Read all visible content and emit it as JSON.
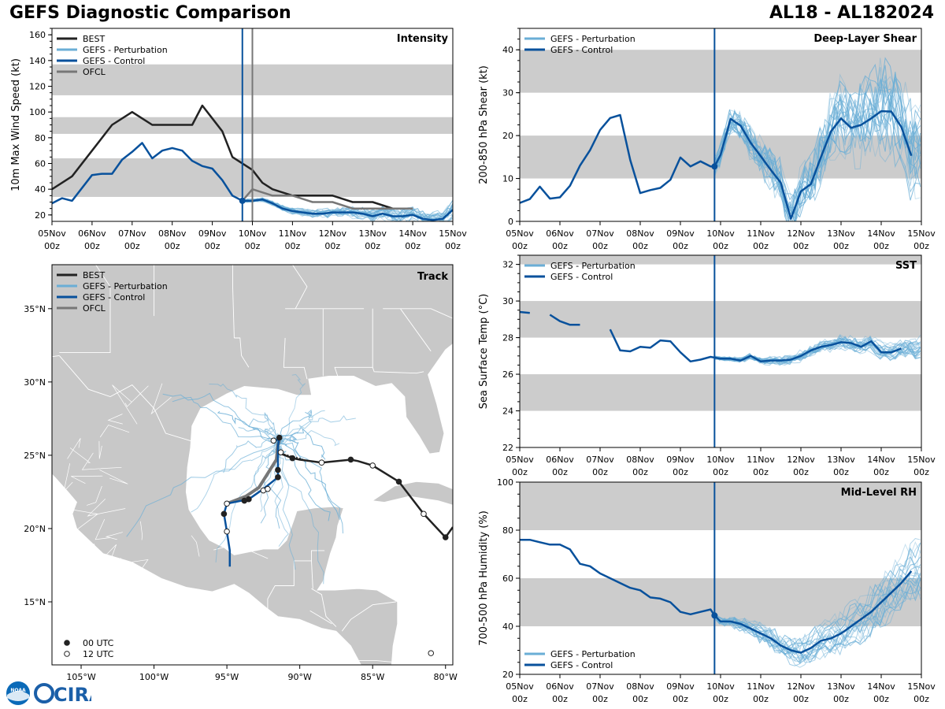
{
  "header": {
    "title_left": "GEFS Diagnostic Comparison",
    "title_right": "AL18 - AL182024"
  },
  "logos": {
    "noaa": "NOAA",
    "cira": "CIRA"
  },
  "colors": {
    "best": "#222222",
    "perturbation": "#6aaed6",
    "control": "#08519c",
    "ofcl": "#777777",
    "band": "#cccccc",
    "land": "#c8c8c8"
  },
  "chart_data": [
    {
      "id": "intensity",
      "type": "line",
      "title": "Intensity",
      "ylabel": "10m Max Wind Speed (kt)",
      "ylim": [
        15,
        165
      ],
      "yticks": [
        20,
        40,
        60,
        80,
        100,
        120,
        140,
        160
      ],
      "xlim": [
        0,
        10
      ],
      "xticks": [
        "05Nov\n00z",
        "06Nov\n00z",
        "07Nov\n00z",
        "08Nov\n00z",
        "09Nov\n00z",
        "10Nov\n00z",
        "11Nov\n00z",
        "12Nov\n00z",
        "13Nov\n00z",
        "14Nov\n00z",
        "15Nov\n00z"
      ],
      "bands": [
        [
          34,
          64
        ],
        [
          83,
          96
        ],
        [
          113,
          137
        ]
      ],
      "vlines": [
        {
          "x": 4.75,
          "series": "GEFS - Control"
        },
        {
          "x": 5.0,
          "series": "OFCL"
        }
      ],
      "legend": [
        "BEST",
        "GEFS - Perturbation",
        "GEFS - Control",
        "OFCL"
      ],
      "series": [
        {
          "name": "BEST",
          "x": [
            0,
            0.5,
            1,
            1.5,
            2,
            2.25,
            2.5,
            3,
            3.5,
            3.75,
            4,
            4.25,
            4.5,
            5,
            5.25,
            5.5,
            6,
            6.5,
            7,
            7.5,
            8,
            8.5,
            9
          ],
          "values": [
            40,
            50,
            70,
            90,
            100,
            95,
            90,
            90,
            90,
            105,
            95,
            85,
            65,
            55,
            45,
            40,
            35,
            35,
            35,
            30,
            30,
            25,
            25
          ]
        },
        {
          "name": "GEFS - Control",
          "x": [
            0,
            0.25,
            0.5,
            1,
            1.25,
            1.5,
            1.75,
            2,
            2.25,
            2.5,
            2.75,
            3,
            3.25,
            3.5,
            3.75,
            4,
            4.25,
            4.5,
            4.75,
            5,
            5.25,
            5.5,
            5.75,
            6,
            6.25,
            6.5,
            6.75,
            7,
            7.25,
            7.5,
            7.75,
            8,
            8.25,
            8.5,
            8.75,
            9,
            9.25,
            9.5,
            9.75,
            10
          ],
          "values": [
            29,
            33,
            31,
            51,
            52,
            52,
            63,
            69,
            76,
            64,
            70,
            72,
            70,
            62,
            58,
            56,
            47,
            35,
            31,
            31,
            32,
            29,
            25,
            23,
            22,
            21,
            21,
            22,
            22,
            22,
            21,
            19,
            21,
            19,
            19,
            20,
            17,
            16,
            17,
            24
          ]
        },
        {
          "name": "OFCL",
          "x": [
            4.75,
            5,
            5.5,
            6,
            6.5,
            7,
            7.5,
            8,
            8.5,
            9
          ],
          "values": [
            31,
            40,
            35,
            35,
            30,
            30,
            25,
            25,
            25,
            25
          ]
        }
      ]
    },
    {
      "id": "shear",
      "type": "line",
      "title": "Deep-Layer Shear",
      "ylabel": "200-850 hPa Shear (kt)",
      "ylim": [
        0,
        45
      ],
      "yticks": [
        0,
        10,
        20,
        30,
        40
      ],
      "xlim": [
        0,
        10
      ],
      "bands": [
        [
          10,
          20
        ],
        [
          30,
          40
        ]
      ],
      "vlines": [
        {
          "x": 4.85,
          "series": "GEFS - Control"
        }
      ],
      "legend": [
        "GEFS - Perturbation",
        "GEFS - Control"
      ],
      "series": [
        {
          "name": "GEFS - Control",
          "x": [
            0,
            0.25,
            0.5,
            0.75,
            1,
            1.25,
            1.5,
            1.75,
            2,
            2.25,
            2.5,
            2.75,
            3,
            3.25,
            3.5,
            3.75,
            4,
            4.25,
            4.5,
            4.75,
            4.85,
            5,
            5.25,
            5.5,
            5.75,
            6,
            6.25,
            6.5,
            6.75,
            7,
            7.25,
            7.5,
            7.75,
            8,
            8.25,
            8.5,
            8.75,
            9,
            9.25,
            9.5,
            9.75
          ],
          "values": [
            4.3,
            5.2,
            8.1,
            5.3,
            5.6,
            8.3,
            13,
            16.6,
            21.3,
            24.1,
            24.8,
            14.3,
            6.6,
            7.3,
            7.8,
            9.7,
            14.9,
            12.8,
            14,
            12.8,
            12.8,
            15.5,
            23.9,
            22.3,
            18.3,
            15.2,
            12,
            9,
            0.6,
            7,
            8.7,
            15,
            21,
            24,
            21.8,
            22.5,
            24,
            25.7,
            25.6,
            22,
            15.3
          ]
        }
      ]
    },
    {
      "id": "sst",
      "type": "line",
      "title": "SST",
      "ylabel": "Sea Surface Temp (°C)",
      "ylim": [
        22,
        32.5
      ],
      "yticks": [
        22,
        24,
        26,
        28,
        30,
        32
      ],
      "xlim": [
        0,
        10
      ],
      "bands": [
        [
          24,
          26
        ],
        [
          28,
          30
        ],
        [
          32,
          34
        ]
      ],
      "vlines": [
        {
          "x": 4.85,
          "series": "GEFS - Control"
        }
      ],
      "legend": [
        "GEFS - Perturbation",
        "GEFS - Control"
      ],
      "series": [
        {
          "name": "GEFS - Control (a)",
          "x": [
            0,
            0.25
          ],
          "values": [
            29.4,
            29.35
          ]
        },
        {
          "name": "GEFS - Control (b)",
          "x": [
            0.75,
            1,
            1.25,
            1.5
          ],
          "values": [
            29.25,
            28.9,
            28.7,
            28.7
          ]
        },
        {
          "name": "GEFS - Control (c)",
          "x": [
            2.25,
            2.5,
            2.75,
            3,
            3.25,
            3.5,
            3.75,
            4,
            4.25,
            4.5,
            4.75,
            5,
            5.25,
            5.5,
            5.75,
            6,
            6.25,
            6.5,
            6.75,
            7,
            7.25,
            7.5,
            7.75,
            8,
            8.25,
            8.5,
            8.75,
            9,
            9.25,
            9.5
          ],
          "values": [
            28.45,
            27.3,
            27.25,
            27.5,
            27.45,
            27.85,
            27.8,
            27.2,
            26.7,
            26.8,
            26.95,
            26.85,
            26.85,
            26.75,
            27,
            26.7,
            26.75,
            26.75,
            26.8,
            27,
            27.3,
            27.5,
            27.6,
            27.75,
            27.7,
            27.5,
            27.8,
            27.2,
            27.2,
            27.4
          ]
        }
      ]
    },
    {
      "id": "rh",
      "type": "line",
      "title": "Mid-Level RH",
      "ylabel": "700-500 hPa Humidity (%)",
      "ylim": [
        20,
        100
      ],
      "yticks": [
        20,
        40,
        60,
        80,
        100
      ],
      "xlim": [
        0,
        10
      ],
      "bands": [
        [
          40,
          60
        ],
        [
          80,
          100
        ]
      ],
      "vlines": [
        {
          "x": 4.85,
          "series": "GEFS - Control"
        }
      ],
      "legend": [
        "GEFS - Perturbation",
        "GEFS - Control"
      ],
      "series": [
        {
          "name": "GEFS - Control",
          "x": [
            0,
            0.25,
            0.5,
            0.75,
            1,
            1.25,
            1.5,
            1.75,
            2,
            2.25,
            2.5,
            2.75,
            3,
            3.25,
            3.5,
            3.75,
            4,
            4.25,
            4.5,
            4.75,
            4.85,
            5,
            5.25,
            5.5,
            5.75,
            6,
            6.25,
            6.5,
            6.75,
            7,
            7.25,
            7.5,
            7.75,
            8,
            8.25,
            8.5,
            8.75,
            9,
            9.25,
            9.5,
            9.75
          ],
          "values": [
            76,
            76,
            75,
            74,
            74,
            72,
            66,
            65,
            62,
            60,
            58,
            56,
            55,
            52,
            51.5,
            50,
            46,
            45,
            46,
            47,
            44.5,
            42,
            42,
            41,
            39,
            37,
            35,
            32,
            30,
            29,
            31,
            34,
            35,
            37,
            40,
            43,
            46,
            50,
            54,
            58,
            63
          ]
        }
      ]
    },
    {
      "id": "track",
      "type": "map",
      "title": "Track",
      "xlim": [
        -107,
        -79.5
      ],
      "ylim": [
        10.7,
        38
      ],
      "xtick_labels": [
        "105°W",
        "100°W",
        "95°W",
        "90°W",
        "85°W",
        "80°W"
      ],
      "ytick_labels": [
        "15°N",
        "20°N",
        "25°N",
        "30°N",
        "35°N"
      ],
      "legend": [
        "BEST",
        "GEFS - Perturbation",
        "GEFS - Control",
        "OFCL"
      ],
      "marker_legend": [
        "00 UTC",
        "12 UTC"
      ],
      "best_track": [
        [
          -79.5,
          20.1
        ],
        [
          -80.0,
          19.4
        ],
        [
          -81.5,
          21.0
        ],
        [
          -83.2,
          23.2
        ],
        [
          -85.0,
          24.3
        ],
        [
          -86.0,
          24.6
        ],
        [
          -86.5,
          24.7
        ],
        [
          -88.5,
          24.5
        ],
        [
          -90.0,
          24.7
        ],
        [
          -90.5,
          24.8
        ],
        [
          -91.3,
          25.1
        ]
      ],
      "control_track": [
        [
          -91.6,
          26.0
        ],
        [
          -91.4,
          26.2
        ],
        [
          -91.5,
          25.6
        ],
        [
          -91.5,
          24.0
        ],
        [
          -91.5,
          23.5
        ],
        [
          -92.5,
          22.7
        ],
        [
          -93.5,
          22.0
        ],
        [
          -95.0,
          21.7
        ],
        [
          -95.2,
          21.0
        ],
        [
          -95.0,
          19.8
        ],
        [
          -94.8,
          18.5
        ],
        [
          -94.8,
          17.4
        ]
      ],
      "ofcl_track": [
        [
          -91.4,
          26.0
        ],
        [
          -91.5,
          25.7
        ],
        [
          -91.6,
          24.7
        ],
        [
          -92.8,
          22.8
        ],
        [
          -93.7,
          22.2
        ],
        [
          -95.0,
          21.7
        ]
      ]
    }
  ]
}
